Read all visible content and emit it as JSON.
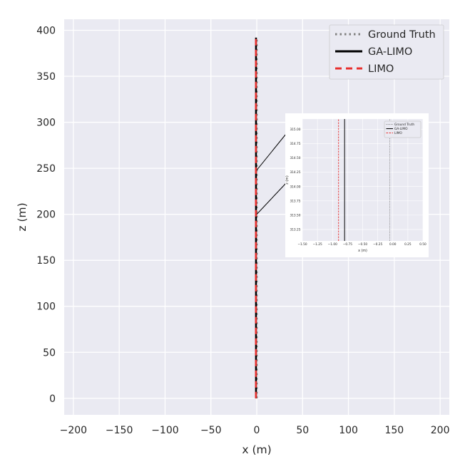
{
  "chart_data": [
    {
      "type": "line",
      "title": "",
      "xlabel": "x (m)",
      "ylabel": "z (m)",
      "xlim": [
        -210,
        210
      ],
      "ylim": [
        -18,
        412
      ],
      "xticks": [
        -200,
        -150,
        -100,
        -50,
        0,
        50,
        100,
        150,
        200
      ],
      "yticks": [
        0,
        50,
        100,
        150,
        200,
        250,
        300,
        350,
        400
      ],
      "xtick_labels": [
        "−200",
        "−150",
        "−100",
        "−50",
        "0",
        "50",
        "100",
        "150",
        "200"
      ],
      "ytick_labels": [
        "0",
        "50",
        "100",
        "150",
        "200",
        "250",
        "300",
        "350",
        "400"
      ],
      "grid": true,
      "legend_position": "top-right",
      "series": [
        {
          "name": "Ground Truth",
          "color": "#808080",
          "style": "dotted",
          "x": [
            0,
            0
          ],
          "y": [
            0,
            392
          ]
        },
        {
          "name": "GA-LIMO",
          "color": "#000000",
          "style": "solid",
          "x": [
            -0.8,
            -0.8
          ],
          "y": [
            0,
            392
          ]
        },
        {
          "name": "LIMO",
          "color": "#e8302e",
          "style": "dashed",
          "x": [
            -0.9,
            -0.9
          ],
          "y": [
            0,
            392
          ]
        }
      ]
    },
    {
      "type": "line",
      "title": "",
      "xlabel": "x (m)",
      "ylabel": "z (m)",
      "xlim": [
        -1.5,
        0.5
      ],
      "ylim": [
        313.05,
        315.18
      ],
      "xticks": [
        -1.5,
        -1.25,
        -1.0,
        -0.75,
        -0.5,
        -0.25,
        0.0,
        0.25,
        0.5
      ],
      "yticks": [
        313.25,
        313.5,
        313.75,
        314.0,
        314.25,
        314.5,
        314.75,
        315.0
      ],
      "xtick_labels": [
        "−1.50",
        "−1.25",
        "−1.00",
        "−0.75",
        "−0.50",
        "−0.25",
        "0.00",
        "0.25",
        "0.50"
      ],
      "ytick_labels": [
        "313.25",
        "313.50",
        "313.75",
        "314.00",
        "314.25",
        "314.50",
        "314.75",
        "315.00"
      ],
      "grid": true,
      "legend_position": "top-right",
      "series": [
        {
          "name": "Ground Truth",
          "color": "#808080",
          "style": "dotted",
          "x": [
            -0.05,
            -0.05
          ],
          "y": [
            313.05,
            315.18
          ]
        },
        {
          "name": "GA-LIMO",
          "color": "#000000",
          "style": "solid",
          "x": [
            -0.8,
            -0.8
          ],
          "y": [
            313.05,
            315.18
          ]
        },
        {
          "name": "LIMO",
          "color": "#e8302e",
          "style": "dashed",
          "x": [
            -0.9,
            -0.9
          ],
          "y": [
            313.05,
            315.18
          ]
        }
      ]
    }
  ]
}
